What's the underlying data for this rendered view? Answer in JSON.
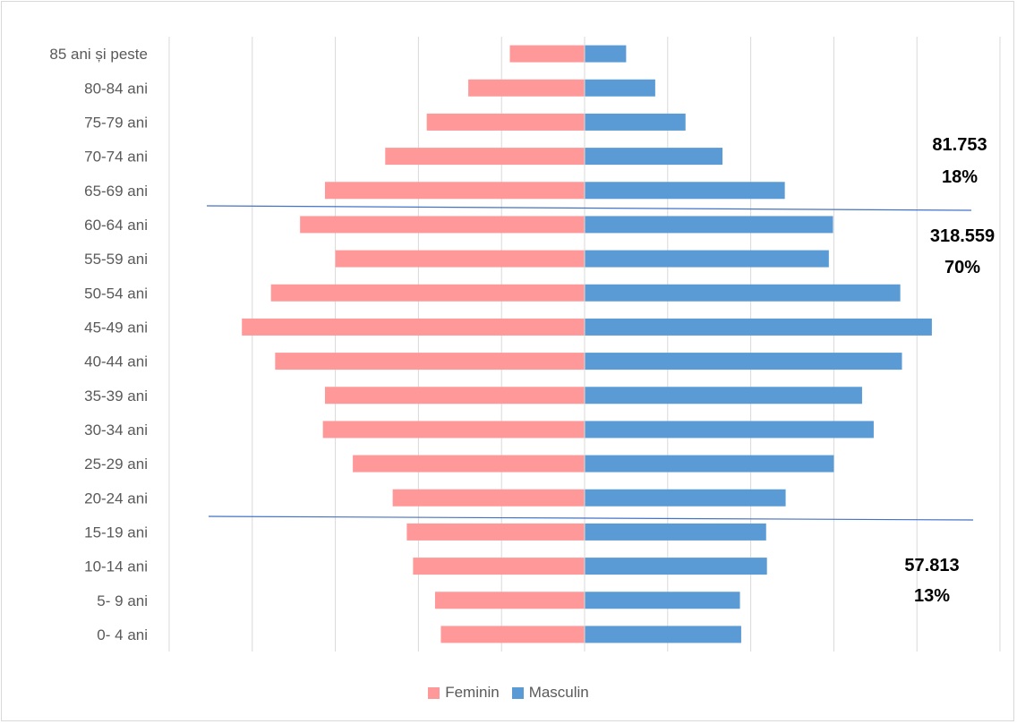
{
  "chart_data": {
    "type": "bar",
    "orientation": "horizontal",
    "layout": "population-pyramid",
    "categories": [
      "85 ani și peste",
      "80-84 ani",
      "75-79 ani",
      "70-74 ani",
      "65-69 ani",
      "60-64 ani",
      "55-59 ani",
      "50-54 ani",
      "45-49 ani",
      "40-44 ani",
      "35-39 ani",
      "30-34 ani",
      "25-29 ani",
      "20-24 ani",
      "15-19 ani",
      "10-14 ani",
      "5- 9 ani",
      "0- 4 ani"
    ],
    "series": [
      {
        "name": "Feminin",
        "color": "#ff9999",
        "side": "left",
        "values": [
          1800,
          2800,
          3800,
          4800,
          6250,
          6850,
          6000,
          7550,
          8250,
          7450,
          6250,
          6300,
          5580,
          4620,
          4280,
          4130,
          3600,
          3460
        ]
      },
      {
        "name": "Masculin",
        "color": "#5b9bd5",
        "side": "right",
        "values": [
          1000,
          1700,
          2430,
          3320,
          4820,
          5980,
          5880,
          7600,
          8360,
          7640,
          6680,
          6960,
          6000,
          4840,
          4370,
          4390,
          3740,
          3770
        ]
      }
    ],
    "xlim": [
      -10000,
      10000
    ],
    "grid": true,
    "legend_position": "bottom",
    "annotations": [
      {
        "lines": [
          "81.753",
          "18%"
        ]
      },
      {
        "lines": [
          "318.559",
          "70%"
        ]
      },
      {
        "lines": [
          "57.813",
          "13%"
        ]
      }
    ],
    "divider_color": "#4472c4"
  },
  "legend": {
    "female": "Feminin",
    "male": "Masculin"
  }
}
